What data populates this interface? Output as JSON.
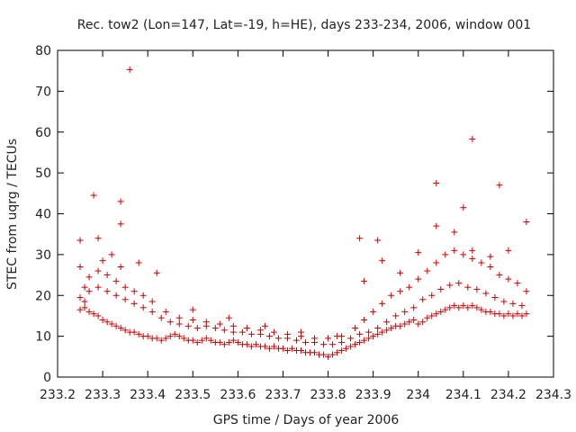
{
  "chart_data": {
    "type": "scatter",
    "title": "Rec. tow2 (Lon=147, Lat=-19, h=HE), days 233-234, 2006, window 001",
    "xlabel": "GPS time / Days of year 2006",
    "ylabel": "STEC from uqrg / TECUs",
    "xlim": [
      233.2,
      234.3
    ],
    "ylim": [
      0,
      80
    ],
    "xticks": [
      233.2,
      233.3,
      233.4,
      233.5,
      233.6,
      233.7,
      233.8,
      233.9,
      234,
      234.1,
      234.2,
      234.3
    ],
    "xtick_labels": [
      "233.2",
      "233.3",
      "233.4",
      "233.5",
      "233.6",
      "233.7",
      "233.8",
      "233.9",
      "234",
      "234.1",
      "234.2",
      "234.3"
    ],
    "yticks": [
      0,
      10,
      20,
      30,
      40,
      50,
      60,
      70,
      80
    ],
    "ytick_labels": [
      "0",
      "10",
      "20",
      "30",
      "40",
      "50",
      "60",
      "70",
      "80"
    ],
    "grid": false,
    "marker": "plus",
    "color": "#cc0000",
    "series": [
      {
        "x": [
          233.25,
          233.26,
          233.26,
          233.27,
          233.28,
          233.29,
          233.3,
          233.31,
          233.32,
          233.33,
          233.34,
          233.35,
          233.36,
          233.37,
          233.38,
          233.39,
          233.4,
          233.41,
          233.42,
          233.43,
          233.44,
          233.45,
          233.46,
          233.47,
          233.48,
          233.49,
          233.5,
          233.51,
          233.52,
          233.53,
          233.54,
          233.55,
          233.56,
          233.57,
          233.58,
          233.59,
          233.6,
          233.61,
          233.62,
          233.63,
          233.64,
          233.65,
          233.66,
          233.67,
          233.68,
          233.69,
          233.7,
          233.71,
          233.72,
          233.73,
          233.74,
          233.75,
          233.76,
          233.77,
          233.78,
          233.79,
          233.8,
          233.81,
          233.82,
          233.83,
          233.84,
          233.85,
          233.86,
          233.87,
          233.88,
          233.89,
          233.9,
          233.91,
          233.92,
          233.93,
          233.94,
          233.95,
          233.96,
          233.97,
          233.98,
          233.99,
          234.0,
          234.01,
          234.02,
          234.03,
          234.04,
          234.05,
          234.06,
          234.07,
          234.08,
          234.09,
          234.1,
          234.11,
          234.12,
          234.13,
          234.14,
          234.15,
          234.16,
          234.17,
          234.18,
          234.19,
          234.2,
          234.21,
          234.22,
          234.23,
          234.24,
          233.25,
          233.27,
          233.29,
          233.31,
          233.33,
          233.35,
          233.37,
          233.39,
          233.41,
          233.43,
          233.45,
          233.47,
          233.49,
          233.51,
          233.53,
          233.55,
          233.57,
          233.59,
          233.61,
          233.63,
          233.65,
          233.67,
          233.69,
          233.71,
          233.73,
          233.75,
          233.77,
          233.79,
          233.81,
          233.83,
          233.85,
          233.87,
          233.89,
          233.91,
          233.93,
          233.95,
          233.97,
          233.99,
          234.01,
          234.03,
          234.05,
          234.07,
          234.09,
          234.11,
          234.13,
          234.15,
          234.17,
          234.19,
          234.21,
          234.23,
          233.25,
          233.27,
          233.29,
          233.31,
          233.33,
          233.35,
          233.37,
          233.39,
          233.41,
          233.44,
          233.47,
          233.5,
          233.53,
          233.56,
          233.59,
          233.62,
          233.65,
          233.68,
          233.71,
          233.74,
          233.77,
          233.8,
          233.83,
          233.86,
          233.88,
          233.9,
          233.92,
          233.94,
          233.96,
          233.98,
          234.0,
          234.02,
          234.04,
          234.06,
          234.08,
          234.1,
          234.12,
          234.14,
          234.16,
          234.18,
          234.2,
          234.22,
          234.24,
          233.26,
          233.3,
          233.34,
          233.38,
          233.42,
          233.5,
          233.58,
          233.66,
          233.74,
          233.82,
          233.88,
          233.92,
          233.96,
          234.0,
          234.04,
          234.08,
          234.12,
          234.16,
          234.2,
          234.24,
          233.25,
          233.28,
          233.29,
          233.34,
          233.36,
          234.04,
          234.12,
          234.18,
          233.34,
          233.32,
          234.1,
          233.87,
          233.91
        ],
        "y": [
          16.5,
          17.0,
          18.5,
          16.0,
          15.5,
          15.0,
          14.0,
          13.5,
          13.0,
          12.5,
          12.0,
          11.5,
          11.0,
          11.0,
          10.5,
          10.0,
          10.0,
          9.5,
          9.5,
          9.0,
          9.5,
          10.0,
          10.5,
          10.0,
          9.5,
          9.0,
          9.0,
          8.5,
          9.0,
          9.5,
          9.0,
          8.5,
          8.5,
          8.0,
          8.5,
          9.0,
          8.5,
          8.0,
          8.0,
          7.5,
          8.0,
          7.5,
          7.5,
          7.0,
          7.5,
          7.0,
          7.0,
          6.5,
          7.0,
          6.5,
          6.5,
          6.0,
          6.0,
          6.0,
          5.5,
          5.5,
          5.0,
          5.5,
          6.0,
          6.5,
          7.0,
          7.5,
          8.0,
          8.5,
          9.0,
          9.5,
          10.0,
          10.5,
          11.0,
          11.5,
          12.0,
          12.5,
          12.5,
          13.0,
          13.5,
          14.0,
          13.0,
          13.5,
          14.5,
          15.0,
          15.5,
          16.0,
          16.5,
          17.0,
          17.5,
          17.0,
          17.5,
          17.0,
          17.5,
          17.0,
          16.5,
          16.0,
          16.0,
          15.5,
          15.5,
          15.0,
          15.5,
          15.0,
          15.5,
          15.0,
          15.5,
          19.5,
          21.0,
          22.0,
          21.0,
          20.0,
          19.0,
          18.0,
          17.0,
          16.0,
          14.5,
          13.5,
          13.0,
          12.5,
          12.0,
          12.5,
          12.0,
          11.5,
          11.0,
          11.0,
          10.5,
          10.5,
          10.0,
          9.5,
          9.5,
          9.0,
          8.5,
          8.5,
          8.0,
          8.0,
          8.5,
          9.5,
          10.5,
          11.0,
          12.0,
          13.5,
          15.0,
          16.0,
          17.0,
          19.0,
          20.0,
          21.5,
          22.5,
          23.0,
          22.0,
          21.5,
          20.5,
          19.5,
          18.5,
          18.0,
          17.5,
          27.0,
          24.5,
          26.0,
          25.0,
          23.5,
          22.0,
          21.0,
          20.0,
          18.5,
          16.0,
          14.5,
          14.0,
          13.5,
          13.0,
          12.5,
          12.0,
          11.5,
          11.0,
          10.5,
          10.0,
          9.5,
          9.5,
          10.0,
          12.0,
          14.0,
          16.0,
          18.0,
          20.0,
          21.0,
          22.0,
          24.0,
          26.0,
          28.0,
          30.0,
          31.0,
          30.0,
          29.0,
          28.0,
          27.0,
          25.0,
          24.0,
          23.0,
          21.0,
          22.0,
          28.5,
          27.0,
          28.0,
          25.5,
          16.5,
          14.5,
          12.5,
          11.0,
          10.0,
          23.5,
          28.5,
          25.5,
          30.5,
          37.0,
          35.5,
          31.0,
          29.5,
          31.0,
          38.0,
          33.5,
          44.5,
          34.0,
          37.5,
          75.3,
          47.5,
          58.3,
          47.0,
          43.0,
          30.0,
          41.5,
          34.0,
          33.5
        ]
      }
    ]
  }
}
